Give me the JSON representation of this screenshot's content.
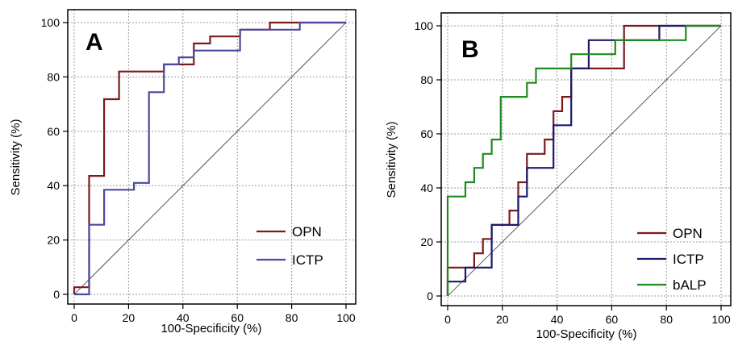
{
  "chart_data": [
    {
      "type": "line",
      "panel_label": "A",
      "xlabel": "100-Specificity (%)",
      "ylabel": "Sensitivity (%)",
      "xlim": [
        0,
        100
      ],
      "ylim": [
        0,
        100
      ],
      "x_ticks": [
        0,
        20,
        40,
        60,
        80,
        100
      ],
      "y_ticks": [
        0,
        20,
        40,
        60,
        80,
        100
      ],
      "grid": true,
      "diagonal_reference": true,
      "legend_position": "bottom-right",
      "series": [
        {
          "name": "OPN",
          "color": "#7b1a1a",
          "x": [
            0,
            0,
            5.5,
            5.5,
            11,
            11,
            16.5,
            16.5,
            33,
            33,
            44,
            44,
            50,
            50,
            61,
            61,
            72,
            72,
            100
          ],
          "y": [
            0,
            2.6,
            2.6,
            43.6,
            43.6,
            71.8,
            71.8,
            82,
            82,
            84.6,
            84.6,
            92.3,
            92.3,
            94.9,
            94.9,
            97.4,
            97.4,
            100,
            100
          ]
        },
        {
          "name": "ICTP",
          "color": "#4a4a9e",
          "x": [
            0,
            5.5,
            5.5,
            11,
            11,
            22,
            22,
            27.5,
            27.5,
            33,
            33,
            38.5,
            38.5,
            44,
            44,
            61,
            61,
            83,
            83,
            100
          ],
          "y": [
            0,
            0,
            25.6,
            25.6,
            38.5,
            38.5,
            41,
            41,
            74.4,
            74.4,
            84.6,
            84.6,
            87.2,
            87.2,
            89.7,
            89.7,
            97.4,
            97.4,
            100,
            100
          ]
        }
      ]
    },
    {
      "type": "line",
      "panel_label": "B",
      "xlabel": "100-Specificity (%)",
      "ylabel": "Sensitivity (%)",
      "xlim": [
        0,
        100
      ],
      "ylim": [
        0,
        100
      ],
      "x_ticks": [
        0,
        20,
        40,
        60,
        80,
        100
      ],
      "y_ticks": [
        0,
        20,
        40,
        60,
        80,
        100
      ],
      "grid": true,
      "diagonal_reference": true,
      "legend_position": "bottom-right",
      "series": [
        {
          "name": "OPN",
          "color": "#7b1a1a",
          "x": [
            0,
            0,
            9.7,
            9.7,
            12.9,
            12.9,
            16.1,
            16.1,
            22.6,
            22.6,
            25.8,
            25.8,
            29,
            29,
            35.5,
            35.5,
            38.7,
            38.7,
            41.9,
            41.9,
            45.2,
            45.2,
            64.5,
            64.5,
            100
          ],
          "y": [
            0,
            10.5,
            10.5,
            15.8,
            15.8,
            21.1,
            21.1,
            26.3,
            26.3,
            31.6,
            31.6,
            42.1,
            42.1,
            52.6,
            52.6,
            57.9,
            57.9,
            68.4,
            68.4,
            73.7,
            73.7,
            84.2,
            84.2,
            100,
            100
          ]
        },
        {
          "name": "ICTP",
          "color": "#1a1a6e",
          "x": [
            0,
            0,
            6.5,
            6.5,
            16.1,
            16.1,
            25.8,
            25.8,
            29,
            29,
            38.7,
            38.7,
            45.2,
            45.2,
            51.6,
            51.6,
            77.4,
            77.4,
            100
          ],
          "y": [
            0,
            5.3,
            5.3,
            10.5,
            10.5,
            26.3,
            26.3,
            36.8,
            36.8,
            47.4,
            47.4,
            63.2,
            63.2,
            84.2,
            84.2,
            94.7,
            94.7,
            100,
            100
          ]
        },
        {
          "name": "bALP",
          "color": "#1f8a1f",
          "x": [
            0,
            0,
            6.5,
            6.5,
            9.7,
            9.7,
            12.9,
            12.9,
            16.1,
            16.1,
            19.4,
            19.4,
            29,
            29,
            32.3,
            32.3,
            45.2,
            45.2,
            61.3,
            61.3,
            87.1,
            87.1,
            90.3,
            90.3,
            100
          ],
          "y": [
            0,
            36.8,
            36.8,
            42.1,
            42.1,
            47.4,
            47.4,
            52.6,
            52.6,
            57.9,
            57.9,
            73.7,
            73.7,
            78.9,
            78.9,
            84.2,
            84.2,
            89.5,
            89.5,
            94.7,
            94.7,
            100,
            100,
            100,
            100
          ]
        }
      ]
    }
  ]
}
